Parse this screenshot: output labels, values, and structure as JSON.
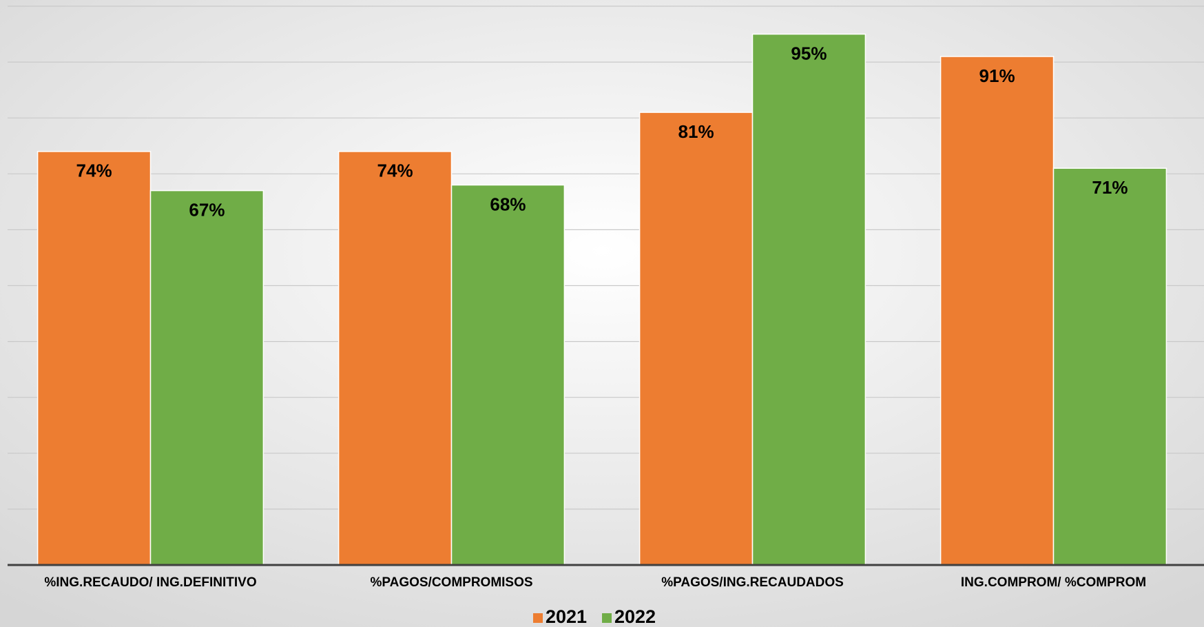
{
  "chart_data": {
    "type": "bar",
    "categories": [
      "%ING.RECAUDO/ ING.DEFINITIVO",
      "%PAGOS/COMPROMISOS",
      "%PAGOS/ING.RECAUDADOS",
      "ING.COMPROM/ %COMPROM"
    ],
    "series": [
      {
        "name": "2021",
        "color": "#ed7d31",
        "values": [
          74,
          74,
          81,
          91
        ],
        "value_labels": [
          "74%",
          "74%",
          "81%",
          "91%"
        ]
      },
      {
        "name": "2022",
        "color": "#70ad47",
        "values": [
          67,
          68,
          95,
          71
        ],
        "value_labels": [
          "67%",
          "68%",
          "95%",
          "71%"
        ]
      }
    ],
    "ylim": [
      0,
      100
    ],
    "yticks": [
      0,
      10,
      20,
      30,
      40,
      50,
      60,
      70,
      80,
      90,
      100
    ],
    "grid": true,
    "legend": "bottom"
  }
}
